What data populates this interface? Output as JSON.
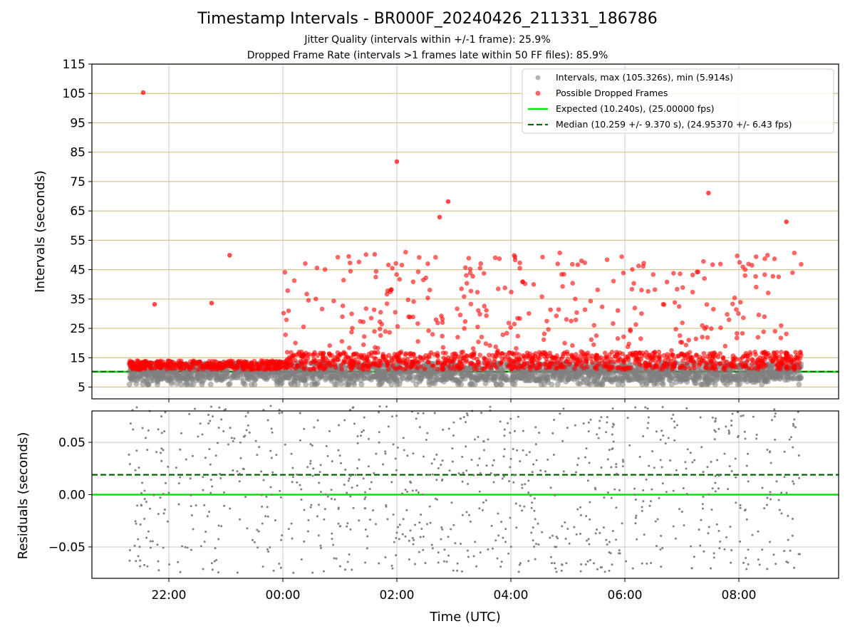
{
  "chart_data": [
    {
      "type": "scatter",
      "title": "Timestamp Intervals - BR000F_20240426_211331_186786",
      "subtitle_1": "Jitter Quality (intervals within +/-1 frame): 25.9%",
      "subtitle_2": "Dropped Frame Rate (intervals >1 frames late within 50 FF files): 85.9%",
      "ylabel": "Intervals (seconds)",
      "xlabel": "",
      "ylim": [
        1,
        115
      ],
      "yticks": [
        5,
        15,
        25,
        35,
        45,
        55,
        65,
        75,
        85,
        95,
        105,
        115
      ],
      "xlim_hours_from_2100": [
        -0.35,
        12.75
      ],
      "xticks": [
        "22:00",
        "00:00",
        "02:00",
        "04:00",
        "06:00",
        "08:00"
      ],
      "grid": true,
      "legend_position": "top-right",
      "legend": [
        "Intervals, max (105.326s), min (5.914s)",
        "Possible Dropped Frames",
        "Expected (10.240s), (25.00000 fps)",
        "Median (10.259 +/- 9.370 s), (24.95370 +/- 6.43 fps)"
      ],
      "expected_interval": 10.24,
      "median_interval": 10.259,
      "outlier_points": [
        {
          "x": "21:33",
          "y": 105.3
        },
        {
          "x": "21:45",
          "y": 33.2
        },
        {
          "x": "22:45",
          "y": 33.6
        },
        {
          "x": "23:04",
          "y": 49.9
        },
        {
          "x": "02:00",
          "y": 81.8
        },
        {
          "x": "02:54",
          "y": 68.2
        },
        {
          "x": "02:45",
          "y": 62.9
        },
        {
          "x": "07:28",
          "y": 71.1
        },
        {
          "x": "08:50",
          "y": 61.3
        }
      ]
    },
    {
      "type": "scatter",
      "ylabel": "Residuals (seconds)",
      "xlabel": "Time (UTC)",
      "ylim": [
        -0.08,
        0.08
      ],
      "yticks": [
        "−0.05",
        "0.00",
        "0.05"
      ],
      "xticks": [
        "22:00",
        "00:00",
        "02:00",
        "04:00",
        "06:00",
        "08:00"
      ],
      "expected_residual": 0.0,
      "median_residual": 0.019,
      "grid": true
    }
  ],
  "colors": {
    "intervals": "#808080",
    "dropped": "#ff0000",
    "expected": "#00e600",
    "median": "#006400",
    "hgrid_top": "#d2c48a",
    "grid": "#c8c8c8"
  }
}
